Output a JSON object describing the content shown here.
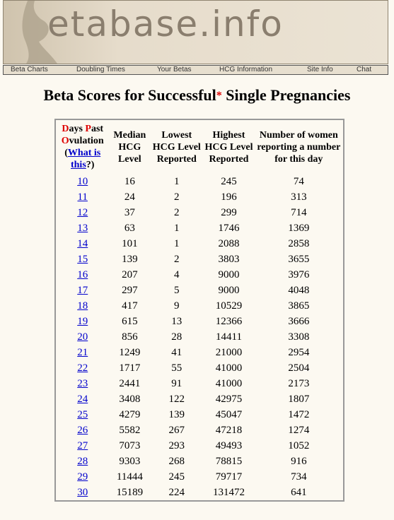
{
  "header": {
    "logo": "etabase.info"
  },
  "nav": [
    "Beta Charts",
    "Doubling Times",
    "Your Betas",
    "HCG Information",
    "Site Info",
    "Chat"
  ],
  "title": {
    "main": "Beta Scores for Successful",
    "mark": "*",
    "rest": " Single Pregnancies"
  },
  "table": {
    "columns": [
      {
        "pieces": [
          "D",
          "ays ",
          "P",
          "ast ",
          "O",
          "vulation (",
          "What is this",
          "?)"
        ]
      },
      "Median HCG Level",
      "Lowest HCG Level Reported",
      "Highest HCG Level Reported",
      "Number of women reporting a number for this day"
    ],
    "rows": [
      [
        10,
        16,
        1,
        245,
        74
      ],
      [
        11,
        24,
        2,
        196,
        313
      ],
      [
        12,
        37,
        2,
        299,
        714
      ],
      [
        13,
        63,
        1,
        1746,
        1369
      ],
      [
        14,
        101,
        1,
        2088,
        2858
      ],
      [
        15,
        139,
        2,
        3803,
        3655
      ],
      [
        16,
        207,
        4,
        9000,
        3976
      ],
      [
        17,
        297,
        5,
        9000,
        4048
      ],
      [
        18,
        417,
        9,
        10529,
        3865
      ],
      [
        19,
        615,
        13,
        12366,
        3666
      ],
      [
        20,
        856,
        28,
        14411,
        3308
      ],
      [
        21,
        1249,
        41,
        21000,
        2954
      ],
      [
        22,
        1717,
        55,
        41000,
        2504
      ],
      [
        23,
        2441,
        91,
        41000,
        2173
      ],
      [
        24,
        3408,
        122,
        42975,
        1807
      ],
      [
        25,
        4279,
        139,
        45047,
        1472
      ],
      [
        26,
        5582,
        267,
        47218,
        1274
      ],
      [
        27,
        7073,
        293,
        49493,
        1052
      ],
      [
        28,
        9303,
        268,
        78815,
        916
      ],
      [
        29,
        11444,
        245,
        79717,
        734
      ],
      [
        30,
        15189,
        224,
        131472,
        641
      ]
    ]
  }
}
